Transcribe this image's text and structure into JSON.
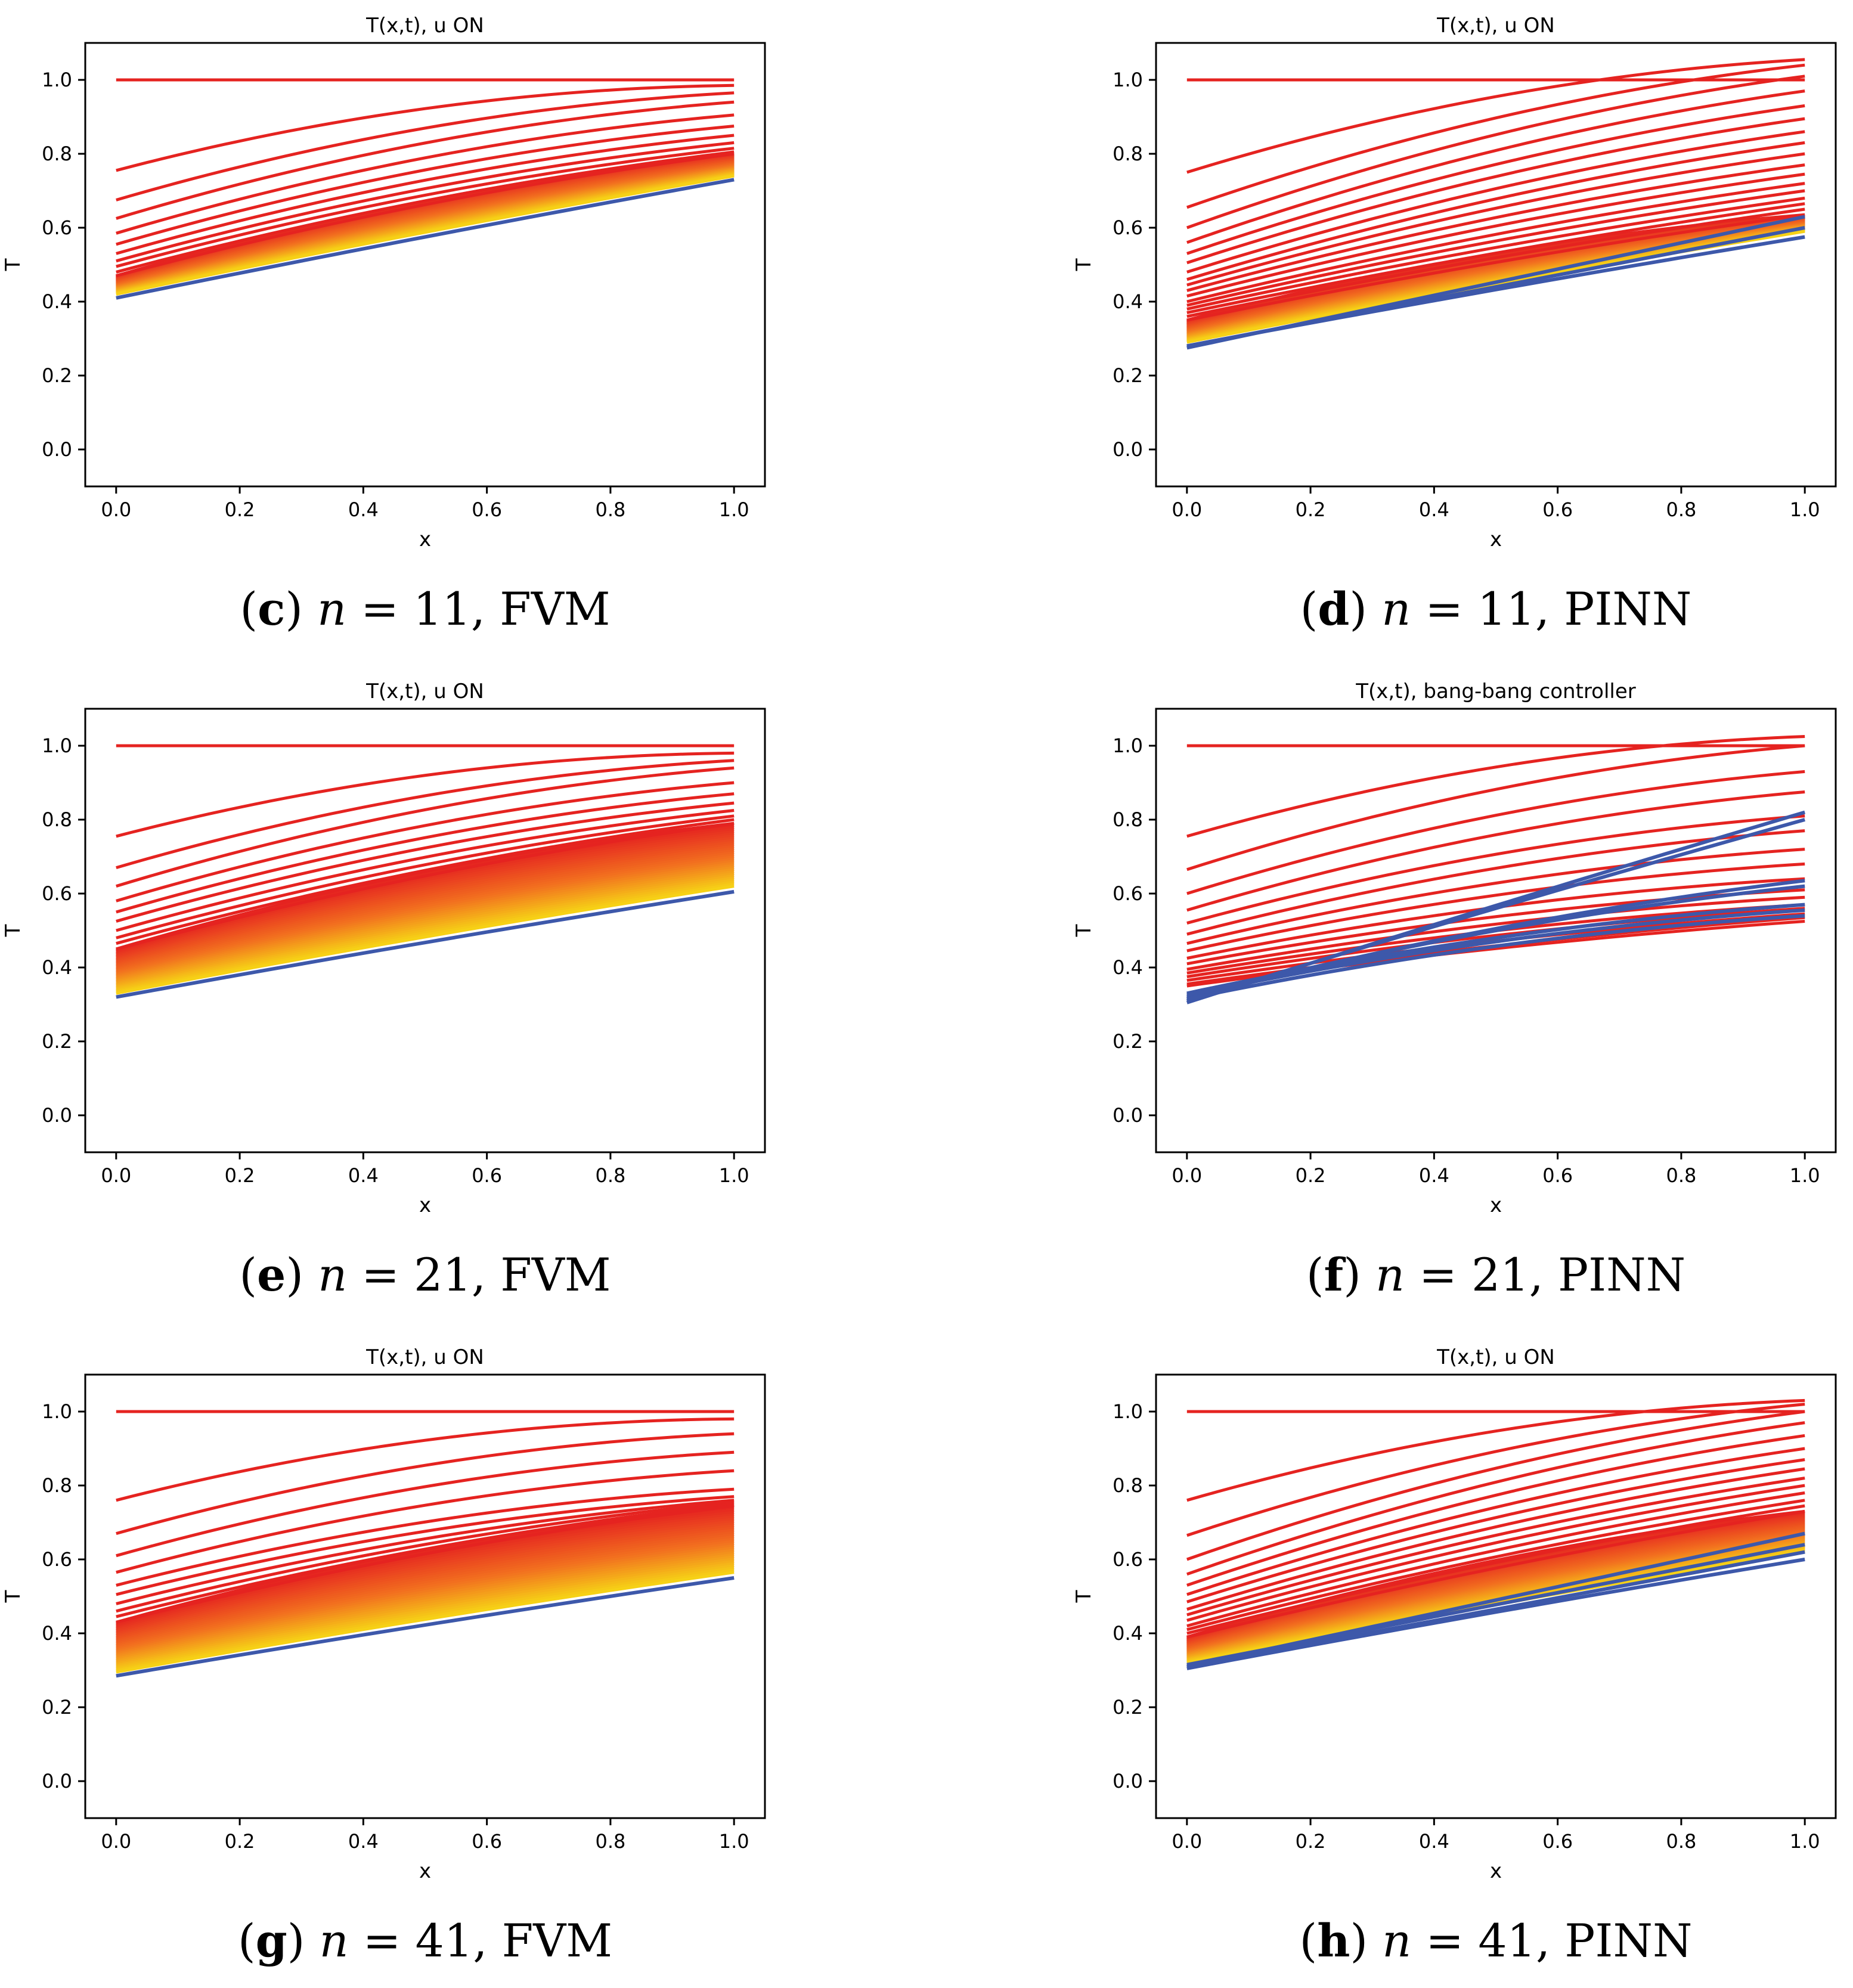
{
  "figure": {
    "panels": [
      {
        "id": "c",
        "caption": {
          "letter": "c",
          "n": "11",
          "method": "FVM"
        }
      },
      {
        "id": "d",
        "caption": {
          "letter": "d",
          "n": "11",
          "method": "PINN"
        }
      },
      {
        "id": "e",
        "caption": {
          "letter": "e",
          "n": "21",
          "method": "FVM"
        }
      },
      {
        "id": "f",
        "caption": {
          "letter": "f",
          "n": "21",
          "method": "PINN"
        }
      },
      {
        "id": "g",
        "caption": {
          "letter": "g",
          "n": "41",
          "method": "FVM"
        }
      },
      {
        "id": "h",
        "caption": {
          "letter": "h",
          "n": "41",
          "method": "PINN"
        }
      }
    ]
  },
  "colors": {
    "red": "#e52320",
    "orange": "#f2711f",
    "yellow": "#f6d116",
    "blue": "#3d58aa",
    "axis": "#000000"
  },
  "chart_data": [
    {
      "id": "c",
      "type": "line",
      "title": "T(x,t), u ON",
      "xlabel": "x",
      "ylabel": "T",
      "xlim": [
        -0.05,
        1.05
      ],
      "ylim": [
        -0.1,
        1.1
      ],
      "xticks": [
        "0.0",
        "0.2",
        "0.4",
        "0.6",
        "0.8",
        "1.0"
      ],
      "yticks": [
        "0.0",
        "0.2",
        "0.4",
        "0.6",
        "0.8",
        "1.0"
      ],
      "series_count": 11,
      "curves_at_x0": [
        1.0,
        0.755,
        0.675,
        0.625,
        0.585,
        0.555,
        0.53,
        0.51,
        0.495,
        0.48,
        0.47
      ],
      "curves_at_x1": [
        1.0,
        0.985,
        0.965,
        0.94,
        0.905,
        0.875,
        0.85,
        0.83,
        0.815,
        0.805,
        0.8
      ],
      "final_curve": {
        "x0": 0.41,
        "x1": 0.73
      },
      "band_bottom": {
        "x0": 0.42,
        "x1": 0.74
      }
    },
    {
      "id": "d",
      "type": "line",
      "title": "T(x,t), u ON",
      "xlabel": "x",
      "ylabel": "T",
      "xlim": [
        -0.05,
        1.05
      ],
      "ylim": [
        -0.1,
        1.1
      ],
      "xticks": [
        "0.0",
        "0.2",
        "0.4",
        "0.6",
        "0.8",
        "1.0"
      ],
      "yticks": [
        "0.0",
        "0.2",
        "0.4",
        "0.6",
        "0.8",
        "1.0"
      ],
      "series_count": 11,
      "curves_at_x0": [
        1.0,
        0.75,
        0.655,
        0.6,
        0.56,
        0.53,
        0.505,
        0.48,
        0.46,
        0.445,
        0.43,
        0.415,
        0.4,
        0.39,
        0.38,
        0.37,
        0.36,
        0.35
      ],
      "curves_at_x1": [
        1.0,
        1.055,
        1.04,
        1.01,
        0.97,
        0.93,
        0.895,
        0.86,
        0.83,
        0.8,
        0.77,
        0.745,
        0.72,
        0.7,
        0.68,
        0.665,
        0.65,
        0.635
      ],
      "final_curve": {
        "x0": 0.28,
        "x1": 0.575
      },
      "band_bottom": {
        "x0": 0.29,
        "x1": 0.59
      },
      "extra_blue": [
        {
          "x0": 0.275,
          "x1": 0.63
        },
        {
          "x0": 0.28,
          "x1": 0.6
        }
      ]
    },
    {
      "id": "e",
      "type": "line",
      "title": "T(x,t), u ON",
      "xlabel": "x",
      "ylabel": "T",
      "xlim": [
        -0.05,
        1.05
      ],
      "ylim": [
        -0.1,
        1.1
      ],
      "xticks": [
        "0.0",
        "0.2",
        "0.4",
        "0.6",
        "0.8",
        "1.0"
      ],
      "yticks": [
        "0.0",
        "0.2",
        "0.4",
        "0.6",
        "0.8",
        "1.0"
      ],
      "series_count": 21,
      "curves_at_x0": [
        1.0,
        0.755,
        0.67,
        0.62,
        0.58,
        0.55,
        0.525,
        0.5,
        0.48,
        0.465,
        0.45
      ],
      "curves_at_x1": [
        1.0,
        0.98,
        0.96,
        0.94,
        0.9,
        0.87,
        0.845,
        0.825,
        0.81,
        0.8,
        0.79
      ],
      "final_curve": {
        "x0": 0.32,
        "x1": 0.605
      },
      "band_bottom": {
        "x0": 0.33,
        "x1": 0.62
      }
    },
    {
      "id": "f",
      "type": "line",
      "title": "T(x,t), bang-bang controller",
      "xlabel": "x",
      "ylabel": "T",
      "xlim": [
        -0.05,
        1.05
      ],
      "ylim": [
        -0.1,
        1.1
      ],
      "xticks": [
        "0.0",
        "0.2",
        "0.4",
        "0.6",
        "0.8",
        "1.0"
      ],
      "yticks": [
        "0.0",
        "0.2",
        "0.4",
        "0.6",
        "0.8",
        "1.0"
      ],
      "series_count": 21,
      "curves_at_x0": [
        1.0,
        0.755,
        0.665,
        0.6,
        0.555,
        0.52,
        0.49,
        0.465,
        0.445,
        0.425,
        0.41,
        0.395,
        0.385,
        0.375,
        0.365,
        0.355,
        0.35
      ],
      "curves_at_x1": [
        1.0,
        1.025,
        1.0,
        0.93,
        0.875,
        0.81,
        0.77,
        0.72,
        0.68,
        0.64,
        0.61,
        0.59,
        0.57,
        0.56,
        0.545,
        0.535,
        0.525
      ],
      "blue_curves_at_x0": [
        0.305,
        0.31,
        0.315,
        0.32,
        0.33,
        0.325,
        0.315
      ],
      "blue_curves_at_x1": [
        0.82,
        0.8,
        0.635,
        0.62,
        0.57,
        0.555,
        0.54
      ]
    },
    {
      "id": "g",
      "type": "line",
      "title": "T(x,t), u ON",
      "xlabel": "x",
      "ylabel": "T",
      "xlim": [
        -0.05,
        1.05
      ],
      "ylim": [
        -0.1,
        1.1
      ],
      "xticks": [
        "0.0",
        "0.2",
        "0.4",
        "0.6",
        "0.8",
        "1.0"
      ],
      "yticks": [
        "0.0",
        "0.2",
        "0.4",
        "0.6",
        "0.8",
        "1.0"
      ],
      "series_count": 41,
      "curves_at_x0": [
        1.0,
        0.76,
        0.67,
        0.61,
        0.565,
        0.53,
        0.505,
        0.48,
        0.46,
        0.445,
        0.43
      ],
      "curves_at_x1": [
        1.0,
        0.98,
        0.94,
        0.89,
        0.84,
        0.79,
        0.77,
        0.76,
        0.755,
        0.75,
        0.745
      ],
      "final_curve": {
        "x0": 0.285,
        "x1": 0.55
      },
      "band_bottom": {
        "x0": 0.295,
        "x1": 0.565
      }
    },
    {
      "id": "h",
      "type": "line",
      "title": "T(x,t), u ON",
      "xlabel": "x",
      "ylabel": "T",
      "xlim": [
        -0.05,
        1.05
      ],
      "ylim": [
        -0.1,
        1.1
      ],
      "xticks": [
        "0.0",
        "0.2",
        "0.4",
        "0.6",
        "0.8",
        "1.0"
      ],
      "yticks": [
        "0.0",
        "0.2",
        "0.4",
        "0.6",
        "0.8",
        "1.0"
      ],
      "series_count": 41,
      "curves_at_x0": [
        1.0,
        0.76,
        0.665,
        0.6,
        0.56,
        0.53,
        0.505,
        0.485,
        0.465,
        0.45,
        0.435,
        0.42,
        0.41,
        0.4,
        0.39
      ],
      "curves_at_x1": [
        1.0,
        1.03,
        1.02,
        1.0,
        0.97,
        0.935,
        0.9,
        0.87,
        0.845,
        0.82,
        0.8,
        0.78,
        0.76,
        0.745,
        0.73
      ],
      "final_curve": {
        "x0": 0.305,
        "x1": 0.6
      },
      "band_bottom": {
        "x0": 0.32,
        "x1": 0.62
      },
      "extra_blue": [
        {
          "x0": 0.31,
          "x1": 0.67
        },
        {
          "x0": 0.315,
          "x1": 0.64
        },
        {
          "x0": 0.31,
          "x1": 0.62
        }
      ]
    }
  ]
}
